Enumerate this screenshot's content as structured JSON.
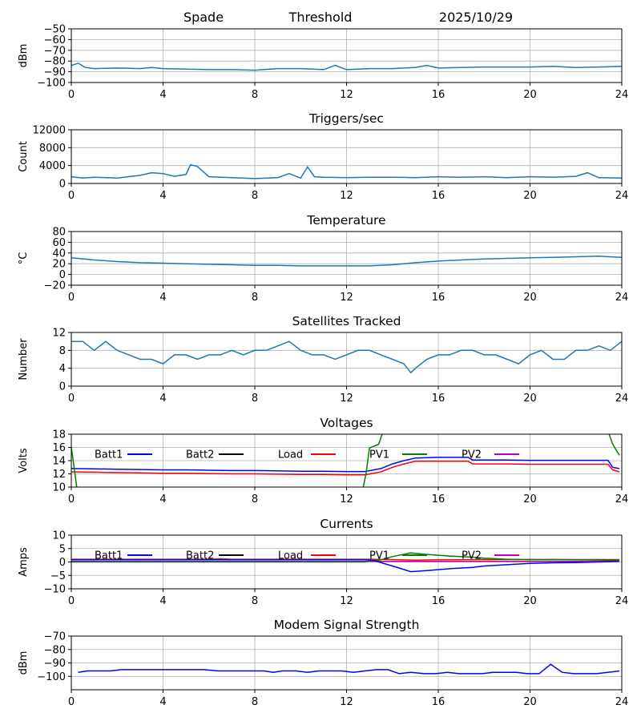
{
  "header": {
    "station": "Spade",
    "mode": "Threshold",
    "date": "2025/10/29"
  },
  "chart_data": [
    {
      "id": "noise",
      "type": "line",
      "title": "",
      "ylabel": "dBm",
      "xlim": [
        0,
        24
      ],
      "ylim": [
        -100,
        -50
      ],
      "yticks": [
        -100,
        -90,
        -80,
        -70,
        -60,
        -50
      ],
      "xticks": [
        0,
        4,
        8,
        12,
        16,
        20,
        24
      ],
      "grid": true,
      "series": [
        {
          "color": "#1f77b4",
          "x": [
            0,
            0.3,
            0.6,
            1,
            2,
            3,
            3.5,
            4,
            5,
            6,
            7,
            8,
            9,
            10,
            11,
            11.5,
            12,
            13,
            14,
            15,
            15.5,
            16,
            17,
            18,
            19,
            20,
            21,
            22,
            23,
            24
          ],
          "y": [
            -84,
            -82,
            -86,
            -87,
            -86.5,
            -87,
            -86,
            -87,
            -87.5,
            -88,
            -88,
            -88.5,
            -87,
            -87,
            -88,
            -84,
            -88,
            -87,
            -87,
            -86,
            -84,
            -86.5,
            -86,
            -85.5,
            -85.5,
            -85.5,
            -85,
            -86,
            -85.5,
            -85
          ]
        }
      ]
    },
    {
      "id": "triggers",
      "type": "line",
      "title": "Triggers/sec",
      "ylabel": "Count",
      "xlim": [
        0,
        24
      ],
      "ylim": [
        0,
        12000
      ],
      "yticks": [
        0,
        4000,
        8000,
        12000
      ],
      "xticks": [
        0,
        4,
        8,
        12,
        16,
        20,
        24
      ],
      "grid": true,
      "series": [
        {
          "color": "#1f77b4",
          "x": [
            0,
            0.5,
            1,
            2,
            3,
            3.5,
            4,
            4.5,
            5,
            5.2,
            5.5,
            6,
            7,
            8,
            9,
            9.5,
            10,
            10.3,
            10.6,
            11,
            12,
            13,
            14,
            15,
            16,
            17,
            18,
            19,
            20,
            21,
            22,
            22.5,
            23,
            24
          ],
          "y": [
            1500,
            1200,
            1400,
            1200,
            1800,
            2400,
            2200,
            1600,
            2000,
            4200,
            3800,
            1500,
            1300,
            1100,
            1300,
            2200,
            1200,
            3700,
            1500,
            1400,
            1300,
            1400,
            1400,
            1300,
            1500,
            1400,
            1500,
            1300,
            1500,
            1400,
            1600,
            2400,
            1300,
            1200
          ]
        }
      ]
    },
    {
      "id": "temperature",
      "type": "line",
      "title": "Temperature",
      "ylabel": "°C",
      "xlim": [
        0,
        24
      ],
      "ylim": [
        -20,
        80
      ],
      "yticks": [
        -20,
        0,
        20,
        40,
        60,
        80
      ],
      "xticks": [
        0,
        4,
        8,
        12,
        16,
        20,
        24
      ],
      "grid": true,
      "series": [
        {
          "color": "#1f77b4",
          "x": [
            0,
            1,
            2,
            3,
            4,
            5,
            6,
            7,
            8,
            9,
            10,
            11,
            12,
            13,
            14,
            15,
            16,
            17,
            18,
            19,
            20,
            21,
            22,
            23,
            24
          ],
          "y": [
            31,
            27,
            24,
            22,
            21,
            20,
            19,
            18,
            17,
            17,
            16,
            16,
            16,
            16,
            18,
            22,
            25,
            27,
            29,
            30,
            31,
            32,
            33,
            34,
            32
          ]
        }
      ]
    },
    {
      "id": "satellites",
      "type": "line",
      "title": "Satellites Tracked",
      "ylabel": "Number",
      "xlim": [
        0,
        24
      ],
      "ylim": [
        0,
        12
      ],
      "yticks": [
        0,
        4,
        8,
        12
      ],
      "xticks": [
        0,
        4,
        8,
        12,
        16,
        20,
        24
      ],
      "grid": true,
      "series": [
        {
          "color": "#1f77b4",
          "x": [
            0,
            0.5,
            1,
            1.5,
            2,
            2.5,
            3,
            3.5,
            4,
            4.5,
            5,
            5.5,
            6,
            6.5,
            7,
            7.5,
            8,
            8.5,
            9,
            9.5,
            10,
            10.5,
            11,
            11.5,
            12,
            12.5,
            13,
            13.5,
            14,
            14.5,
            14.8,
            15,
            15.5,
            16,
            16.5,
            17,
            17.5,
            18,
            18.5,
            19,
            19.5,
            20,
            20.5,
            21,
            21.5,
            22,
            22.5,
            23,
            23.5,
            24
          ],
          "y": [
            10,
            10,
            8,
            10,
            8,
            7,
            6,
            6,
            5,
            7,
            7,
            6,
            7,
            7,
            8,
            7,
            8,
            8,
            9,
            10,
            8,
            7,
            7,
            6,
            7,
            8,
            8,
            7,
            6,
            5,
            3,
            4,
            6,
            7,
            7,
            8,
            8,
            7,
            7,
            6,
            5,
            7,
            8,
            6,
            6,
            8,
            8,
            9,
            8,
            10
          ]
        }
      ]
    },
    {
      "id": "voltages",
      "type": "line",
      "title": "Voltages",
      "ylabel": "Volts",
      "xlim": [
        0,
        24
      ],
      "ylim": [
        10,
        18
      ],
      "yticks": [
        10,
        12,
        14,
        16,
        18
      ],
      "xticks": [
        0,
        4,
        8,
        12,
        16,
        20,
        24
      ],
      "grid": true,
      "legend": [
        {
          "name": "Batt1",
          "color": "#0000ff"
        },
        {
          "name": "Batt2",
          "color": "#000000"
        },
        {
          "name": "Load",
          "color": "#ff0000"
        },
        {
          "name": "PV1",
          "color": "#008000"
        },
        {
          "name": "PV2",
          "color": "#bf00bf"
        }
      ],
      "series": [
        {
          "name": "Batt1",
          "color": "#0000ff",
          "x": [
            0,
            1,
            2,
            3,
            4,
            5,
            6,
            7,
            8,
            9,
            10,
            11,
            12,
            12.8,
            13.5,
            14,
            14.5,
            15,
            16,
            17,
            17.3,
            17.5,
            18,
            19,
            20,
            21,
            22,
            23,
            23.4,
            23.6,
            23.9
          ],
          "y": [
            12.8,
            12.75,
            12.7,
            12.65,
            12.6,
            12.6,
            12.55,
            12.5,
            12.5,
            12.45,
            12.4,
            12.4,
            12.35,
            12.35,
            12.8,
            13.5,
            14.0,
            14.4,
            14.5,
            14.5,
            14.5,
            14.1,
            14.1,
            14.1,
            14.05,
            14.05,
            14.05,
            14.05,
            14.05,
            13.0,
            12.8
          ]
        },
        {
          "name": "Load",
          "color": "#ff0000",
          "x": [
            0,
            1,
            2,
            3,
            4,
            5,
            6,
            7,
            8,
            9,
            10,
            11,
            12,
            12.8,
            13.5,
            14,
            14.5,
            15,
            16,
            17,
            17.3,
            17.5,
            18,
            19,
            20,
            21,
            22,
            23,
            23.4,
            23.6,
            23.9
          ],
          "y": [
            12.3,
            12.25,
            12.2,
            12.15,
            12.1,
            12.1,
            12.05,
            12.0,
            12.0,
            11.95,
            11.9,
            11.9,
            11.85,
            11.85,
            12.3,
            13.0,
            13.5,
            13.9,
            13.9,
            13.9,
            13.9,
            13.5,
            13.5,
            13.5,
            13.45,
            13.45,
            13.45,
            13.45,
            13.45,
            12.6,
            12.3
          ]
        },
        {
          "name": "PV1",
          "color": "#008000",
          "x": [
            0,
            0.1,
            0.2,
            0.25,
            12.7,
            12.85,
            13.0,
            13.4,
            13.6,
            23.4,
            23.6,
            23.9
          ],
          "y": [
            16.0,
            13.5,
            11.0,
            9.5,
            9.5,
            12.0,
            15.9,
            16.5,
            18.5,
            18.5,
            16.5,
            14.8
          ]
        }
      ]
    },
    {
      "id": "currents",
      "type": "line",
      "title": "Currents",
      "ylabel": "Amps",
      "xlim": [
        0,
        24
      ],
      "ylim": [
        -10,
        10
      ],
      "yticks": [
        -10,
        -5,
        0,
        5,
        10
      ],
      "xticks": [
        0,
        4,
        8,
        12,
        16,
        20,
        24
      ],
      "grid": true,
      "legend": [
        {
          "name": "Batt1",
          "color": "#0000ff"
        },
        {
          "name": "Batt2",
          "color": "#000000"
        },
        {
          "name": "Load",
          "color": "#ff0000"
        },
        {
          "name": "PV1",
          "color": "#008000"
        },
        {
          "name": "PV2",
          "color": "#bf00bf"
        }
      ],
      "series": [
        {
          "name": "PV2",
          "color": "#bf00bf",
          "x": [
            0,
            6,
            12,
            18,
            23.9
          ],
          "y": [
            0.2,
            0.2,
            0.2,
            0.2,
            0.2
          ]
        },
        {
          "name": "Load",
          "color": "#ff0000",
          "x": [
            0,
            2,
            4,
            6,
            6.5,
            7,
            8,
            10,
            12,
            13,
            14,
            15,
            16,
            18,
            20,
            22,
            23.9
          ],
          "y": [
            1.0,
            1.0,
            1.0,
            1.0,
            1.2,
            1.0,
            1.0,
            1.0,
            1.0,
            1.0,
            0.9,
            0.7,
            0.8,
            0.9,
            0.9,
            0.9,
            0.9
          ]
        },
        {
          "name": "PV1",
          "color": "#008000",
          "x": [
            0,
            12.8,
            13.5,
            14,
            14.8,
            15.5,
            16.5,
            17.5,
            18,
            19,
            20,
            21,
            22,
            23.9
          ],
          "y": [
            0,
            0,
            0.8,
            2.0,
            3.4,
            2.8,
            2.2,
            1.8,
            1.4,
            1.0,
            0.9,
            0.9,
            0.8,
            0.6
          ]
        },
        {
          "name": "Batt1",
          "color": "#0000ff",
          "x": [
            0,
            12.8,
            13.2,
            14,
            14.8,
            15.5,
            16.5,
            17.5,
            18,
            19,
            20,
            21,
            22,
            23,
            23.9
          ],
          "y": [
            0.8,
            0.8,
            0.5,
            -1.5,
            -3.6,
            -3.2,
            -2.5,
            -2.0,
            -1.5,
            -1.0,
            -0.5,
            -0.3,
            -0.2,
            0,
            0.2
          ]
        }
      ]
    },
    {
      "id": "modem",
      "type": "line",
      "title": "Modem Signal Strength",
      "ylabel": "dBm",
      "xlim": [
        0,
        24
      ],
      "ylim": [
        -110,
        -70
      ],
      "yticks": [
        -100,
        -90,
        -80,
        -70
      ],
      "xticks": [
        0,
        4,
        8,
        12,
        16,
        20,
        24
      ],
      "grid": true,
      "series": [
        {
          "color": "#0000ff",
          "x": [
            0.3,
            0.7,
            1.2,
            1.7,
            2.2,
            3,
            4,
            5,
            5.8,
            6.4,
            7,
            8,
            8.4,
            8.8,
            9.2,
            9.8,
            10.3,
            10.8,
            11.2,
            11.8,
            12.3,
            12.8,
            13.3,
            13.8,
            14.3,
            14.8,
            15.4,
            15.9,
            16.4,
            16.9,
            17.4,
            17.9,
            18.4,
            18.9,
            19.4,
            19.9,
            20.4,
            20.9,
            21.4,
            21.9,
            22.4,
            22.9,
            23.4,
            23.9
          ],
          "y": [
            -97,
            -96,
            -96,
            -96,
            -95,
            -95,
            -95,
            -95,
            -95,
            -96,
            -96,
            -96,
            -96,
            -97,
            -96,
            -96,
            -97,
            -96,
            -96,
            -96,
            -97,
            -96,
            -95,
            -95,
            -98,
            -97,
            -98,
            -98,
            -97,
            -98,
            -98,
            -98,
            -97,
            -97,
            -97,
            -98,
            -98,
            -91,
            -97,
            -98,
            -98,
            -98,
            -97,
            -96
          ]
        }
      ]
    }
  ]
}
